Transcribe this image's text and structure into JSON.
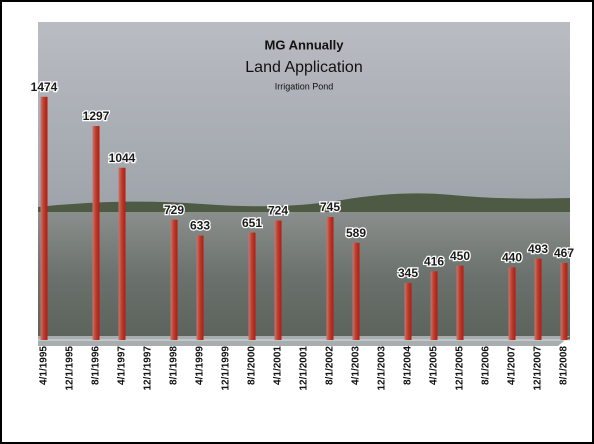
{
  "chart_data": {
    "type": "bar",
    "title": "MG Annually",
    "subtitle": "Land Application",
    "annotation": "Irrigation Pond",
    "categories": [
      "4/1/1995",
      "12/1/1995",
      "8/1/1996",
      "4/1/1997",
      "12/1/1997",
      "8/1/1998",
      "4/1/1999",
      "12/1/1999",
      "8/1/2000",
      "4/1/2001",
      "12/1/2001",
      "8/1/2002",
      "4/1/2003",
      "12/1/2003",
      "8/1/2004",
      "4/1/2005",
      "12/1/2005",
      "8/1/2006",
      "4/1/2007",
      "12/1/2007",
      "8/1/2008"
    ],
    "values": [
      1474,
      null,
      1297,
      1044,
      null,
      729,
      633,
      null,
      651,
      724,
      null,
      745,
      589,
      null,
      345,
      416,
      450,
      null,
      440,
      493,
      467
    ],
    "color": "#c0392b",
    "ylim": [
      0,
      1600
    ]
  }
}
